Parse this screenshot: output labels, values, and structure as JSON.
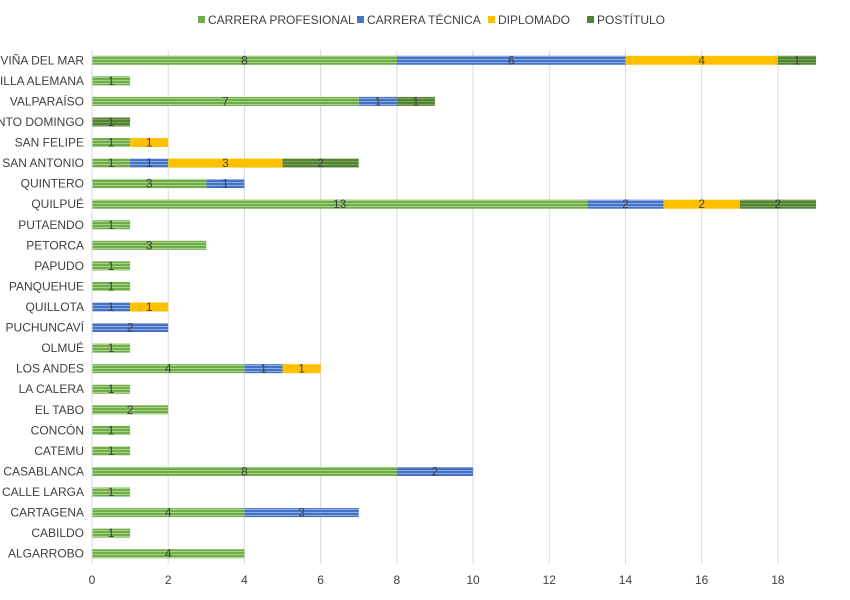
{
  "chart_data": {
    "type": "bar",
    "orientation": "horizontal",
    "stacked": true,
    "title": "",
    "xlabel": "",
    "ylabel": "",
    "xlim": [
      0,
      20
    ],
    "x_ticks": [
      "0",
      "2",
      "4",
      "6",
      "8",
      "10",
      "12",
      "14",
      "16",
      "18",
      "2"
    ],
    "grid": "vertical",
    "legend_position": "top",
    "categories": [
      "VIÑA DEL MAR",
      "VILLA ALEMANA",
      "VALPARAÍSO",
      "SANTO DOMINGO",
      "SAN FELIPE",
      "SAN ANTONIO",
      "QUINTERO",
      "QUILPUÉ",
      "PUTAENDO",
      "PETORCA",
      "PAPUDO",
      "PANQUEHUE",
      "QUILLOTA",
      "PUCHUNCAVÍ",
      "OLMUÉ",
      "LOS ANDES",
      "LA CALERA",
      "EL TABO",
      "CONCÓN",
      "CATEMU",
      "CASABLANCA",
      "CALLE LARGA",
      "CARTAGENA",
      "CABILDO",
      "ALGARROBO"
    ],
    "series": [
      {
        "name": "CARRERA PROFESIONAL",
        "color": "#70ad47",
        "values": [
          8,
          1,
          7,
          0,
          1,
          1,
          3,
          13,
          1,
          3,
          1,
          1,
          0,
          0,
          1,
          4,
          1,
          2,
          1,
          1,
          8,
          1,
          4,
          1,
          4
        ]
      },
      {
        "name": "CARRERA TÉCNICA",
        "color": "#4472c4",
        "values": [
          6,
          0,
          1,
          0,
          0,
          1,
          1,
          2,
          0,
          0,
          0,
          0,
          1,
          2,
          0,
          1,
          0,
          0,
          0,
          0,
          2,
          0,
          3,
          0,
          0
        ]
      },
      {
        "name": "DIPLOMADO",
        "color": "#ffc000",
        "values": [
          4,
          0,
          0,
          0,
          1,
          3,
          0,
          2,
          0,
          0,
          0,
          0,
          1,
          0,
          0,
          1,
          0,
          0,
          0,
          0,
          0,
          0,
          0,
          0,
          0
        ]
      },
      {
        "name": "POSTÍTULO",
        "color": "#548235",
        "values": [
          1,
          0,
          1,
          1,
          0,
          2,
          0,
          2,
          0,
          0,
          0,
          0,
          0,
          0,
          0,
          0,
          0,
          0,
          0,
          0,
          0,
          0,
          0,
          0,
          0
        ]
      }
    ]
  }
}
